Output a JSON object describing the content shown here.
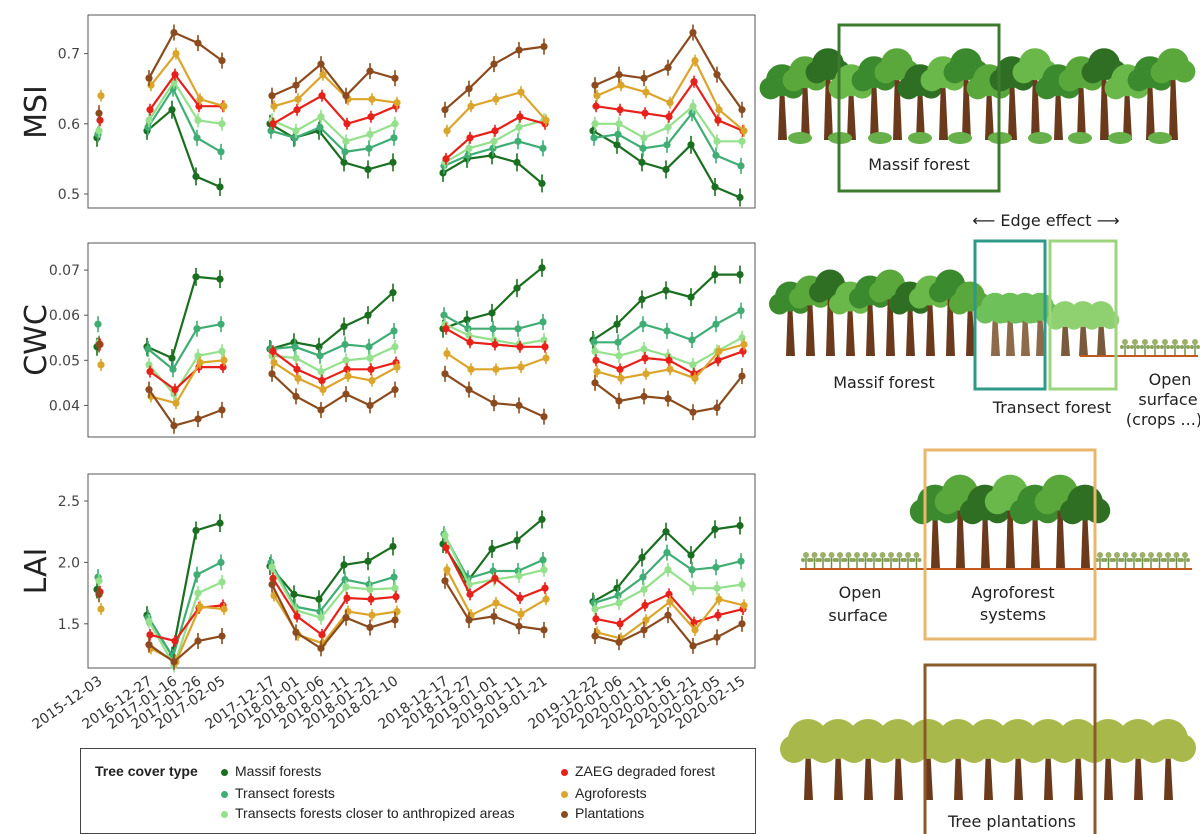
{
  "chart_data": {
    "type": "line",
    "x_tick_labels": [
      "2015-12-03",
      "2016-12-27",
      "2017-01-16",
      "2017-01-26",
      "2017-02-05",
      "2017-12-17",
      "2018-01-01",
      "2018-01-06",
      "2018-01-11",
      "2018-01-21",
      "2018-02-10",
      "2018-12-17",
      "2018-12-27",
      "2019-01-01",
      "2019-01-11",
      "2019-01-21",
      "2019-12-22",
      "2020-01-06",
      "2020-01-11",
      "2020-01-16",
      "2020-01-21",
      "2020-02-05",
      "2020-02-15"
    ],
    "legend": {
      "title": "Tree cover type",
      "position": "bottom"
    },
    "series_styles": [
      {
        "name": "Massif forests",
        "color": "#1a6e1f"
      },
      {
        "name": "Transect forests",
        "color": "#3fad74"
      },
      {
        "name": "Transects forests closer to anthropized areas",
        "color": "#94e08c"
      },
      {
        "name": "ZAEG degraded forest",
        "color": "#e8201a"
      },
      {
        "name": "Agroforests",
        "color": "#dba52c"
      },
      {
        "name": "Plantations",
        "color": "#8b4b1e"
      }
    ],
    "panels": [
      {
        "ylabel": "MSI",
        "ylim": [
          0.48,
          0.755
        ],
        "yticks": [
          0.5,
          0.6,
          0.7
        ],
        "ytick_labels": [
          "0.5",
          "0.6",
          "0.7"
        ],
        "series": [
          {
            "values": [
              0.58,
              0.59,
              0.62,
              0.525,
              0.51,
              0.6,
              0.58,
              0.59,
              0.545,
              0.535,
              0.545,
              0.53,
              0.55,
              0.555,
              0.545,
              0.515,
              0.59,
              0.57,
              0.545,
              0.535,
              0.57,
              0.51,
              0.495
            ]
          },
          {
            "values": [
              0.585,
              0.595,
              0.65,
              0.58,
              0.56,
              0.59,
              0.58,
              0.595,
              0.56,
              0.565,
              0.58,
              0.54,
              0.555,
              0.565,
              0.575,
              0.565,
              0.58,
              0.585,
              0.565,
              0.57,
              0.615,
              0.555,
              0.54
            ]
          },
          {
            "values": [
              0.59,
              0.605,
              0.66,
              0.605,
              0.6,
              0.605,
              0.59,
              0.61,
              0.575,
              0.585,
              0.6,
              0.545,
              0.565,
              0.575,
              0.595,
              0.605,
              0.6,
              0.6,
              0.58,
              0.595,
              0.625,
              0.575,
              0.575
            ]
          },
          {
            "values": [
              0.605,
              0.62,
              0.67,
              0.625,
              0.625,
              0.6,
              0.62,
              0.64,
              0.6,
              0.61,
              0.625,
              0.55,
              0.58,
              0.59,
              0.61,
              0.6,
              0.625,
              0.62,
              0.615,
              0.61,
              0.66,
              0.605,
              0.59
            ]
          },
          {
            "values": [
              0.64,
              0.655,
              0.7,
              0.635,
              0.625,
              0.625,
              0.635,
              0.67,
              0.635,
              0.635,
              0.63,
              0.59,
              0.625,
              0.635,
              0.645,
              0.605,
              0.64,
              0.655,
              0.645,
              0.63,
              0.69,
              0.62,
              0.59
            ]
          },
          {
            "values": [
              0.615,
              0.665,
              0.73,
              0.715,
              0.69,
              0.64,
              0.655,
              0.685,
              0.64,
              0.675,
              0.665,
              0.62,
              0.65,
              0.685,
              0.705,
              0.71,
              0.655,
              0.67,
              0.665,
              0.68,
              0.73,
              0.67,
              0.62
            ]
          }
        ]
      },
      {
        "ylabel": "CWC",
        "ylim": [
          0.033,
          0.076
        ],
        "yticks": [
          0.04,
          0.05,
          0.06,
          0.07
        ],
        "ytick_labels": [
          "0.04",
          "0.05",
          "0.06",
          "0.07"
        ],
        "series": [
          {
            "values": [
              0.053,
              0.053,
              0.0505,
              0.0685,
              0.068,
              0.0525,
              0.054,
              0.053,
              0.0575,
              0.06,
              0.065,
              0.057,
              0.059,
              0.0605,
              0.066,
              0.0705,
              0.0545,
              0.058,
              0.0635,
              0.0655,
              0.064,
              0.069,
              0.069
            ]
          },
          {
            "values": [
              0.058,
              0.0525,
              0.048,
              0.057,
              0.058,
              0.0525,
              0.053,
              0.051,
              0.0535,
              0.053,
              0.0565,
              0.06,
              0.057,
              0.057,
              0.057,
              0.0585,
              0.054,
              0.054,
              0.058,
              0.0565,
              0.0545,
              0.058,
              0.061
            ]
          },
          {
            "values": [
              0.054,
              0.049,
              0.0425,
              0.051,
              0.052,
              0.051,
              0.0505,
              0.0475,
              0.05,
              0.0505,
              0.053,
              0.058,
              0.0555,
              0.0545,
              0.0535,
              0.0545,
              0.052,
              0.051,
              0.0525,
              0.051,
              0.049,
              0.052,
              0.055
            ]
          },
          {
            "values": [
              0.0535,
              0.0475,
              0.0435,
              0.0485,
              0.0485,
              0.052,
              0.048,
              0.0455,
              0.048,
              0.048,
              0.0495,
              0.057,
              0.054,
              0.0535,
              0.053,
              0.053,
              0.05,
              0.048,
              0.0505,
              0.05,
              0.047,
              0.05,
              0.052
            ]
          },
          {
            "values": [
              0.049,
              0.042,
              0.0405,
              0.0495,
              0.05,
              0.0495,
              0.046,
              0.0435,
              0.0465,
              0.0455,
              0.0485,
              0.0515,
              0.048,
              0.048,
              0.0485,
              0.0505,
              0.0475,
              0.046,
              0.047,
              0.048,
              0.046,
              0.052,
              0.0535
            ]
          },
          {
            "values": [
              0.0535,
              0.0435,
              0.0355,
              0.037,
              0.039,
              0.047,
              0.042,
              0.039,
              0.0425,
              0.04,
              0.0435,
              0.047,
              0.0435,
              0.0405,
              0.04,
              0.0375,
              0.045,
              0.041,
              0.042,
              0.0415,
              0.0385,
              0.0395,
              0.0465
            ]
          }
        ]
      },
      {
        "ylabel": "LAI",
        "ylim": [
          1.14,
          2.72
        ],
        "yticks": [
          1.5,
          2.0,
          2.5
        ],
        "ytick_labels": [
          "1.5",
          "2.0",
          "2.5"
        ],
        "series": [
          {
            "values": [
              1.78,
              1.57,
              1.24,
              2.26,
              2.32,
              1.97,
              1.74,
              1.7,
              1.98,
              2.01,
              2.13,
              2.15,
              1.84,
              2.11,
              2.18,
              2.35,
              1.68,
              1.79,
              2.04,
              2.25,
              2.06,
              2.27,
              2.3
            ]
          },
          {
            "values": [
              1.88,
              1.55,
              1.23,
              1.9,
              2.0,
              2.0,
              1.64,
              1.6,
              1.86,
              1.82,
              1.88,
              2.23,
              1.87,
              1.93,
              1.93,
              2.02,
              1.67,
              1.73,
              1.88,
              2.08,
              1.94,
              1.96,
              2.01
            ]
          },
          {
            "values": [
              1.85,
              1.52,
              1.16,
              1.75,
              1.84,
              1.96,
              1.61,
              1.55,
              1.8,
              1.78,
              1.79,
              2.22,
              1.82,
              1.86,
              1.89,
              1.94,
              1.62,
              1.67,
              1.78,
              1.94,
              1.79,
              1.79,
              1.82
            ]
          },
          {
            "values": [
              1.76,
              1.41,
              1.36,
              1.63,
              1.65,
              1.87,
              1.56,
              1.41,
              1.71,
              1.7,
              1.72,
              2.12,
              1.74,
              1.87,
              1.71,
              1.79,
              1.54,
              1.5,
              1.65,
              1.74,
              1.51,
              1.57,
              1.62
            ]
          },
          {
            "values": [
              1.62,
              1.3,
              1.19,
              1.64,
              1.62,
              1.73,
              1.41,
              1.34,
              1.6,
              1.57,
              1.6,
              1.94,
              1.57,
              1.67,
              1.58,
              1.7,
              1.43,
              1.38,
              1.53,
              1.68,
              1.45,
              1.7,
              1.65
            ]
          },
          {
            "values": [
              1.74,
              1.33,
              1.19,
              1.36,
              1.4,
              1.82,
              1.43,
              1.3,
              1.55,
              1.47,
              1.53,
              1.85,
              1.53,
              1.56,
              1.48,
              1.45,
              1.4,
              1.35,
              1.45,
              1.57,
              1.32,
              1.39,
              1.5
            ]
          }
        ]
      }
    ]
  },
  "legend_labels": {
    "title": "Tree cover type",
    "massif": "Massif forests",
    "transect": "Transect forests",
    "transect_anthro": "Transects forests closer to anthropized areas",
    "zaeg": "ZAEG degraded forest",
    "agro": "Agroforests",
    "plantations": "Plantations"
  },
  "illustration": {
    "massif_panel": "Massif forest",
    "edge_effect": "⟵ Edge effect ⟶",
    "edge_massif": "Massif forest",
    "edge_transect": "Transect forest",
    "edge_open_1": "Open",
    "edge_open_2": "surface",
    "edge_open_3": "(crops ...)",
    "agro_open_1": "Open",
    "agro_open_2": "surface",
    "agro_systems_1": "Agroforest",
    "agro_systems_2": "systems",
    "plantations": "Tree plantations"
  }
}
